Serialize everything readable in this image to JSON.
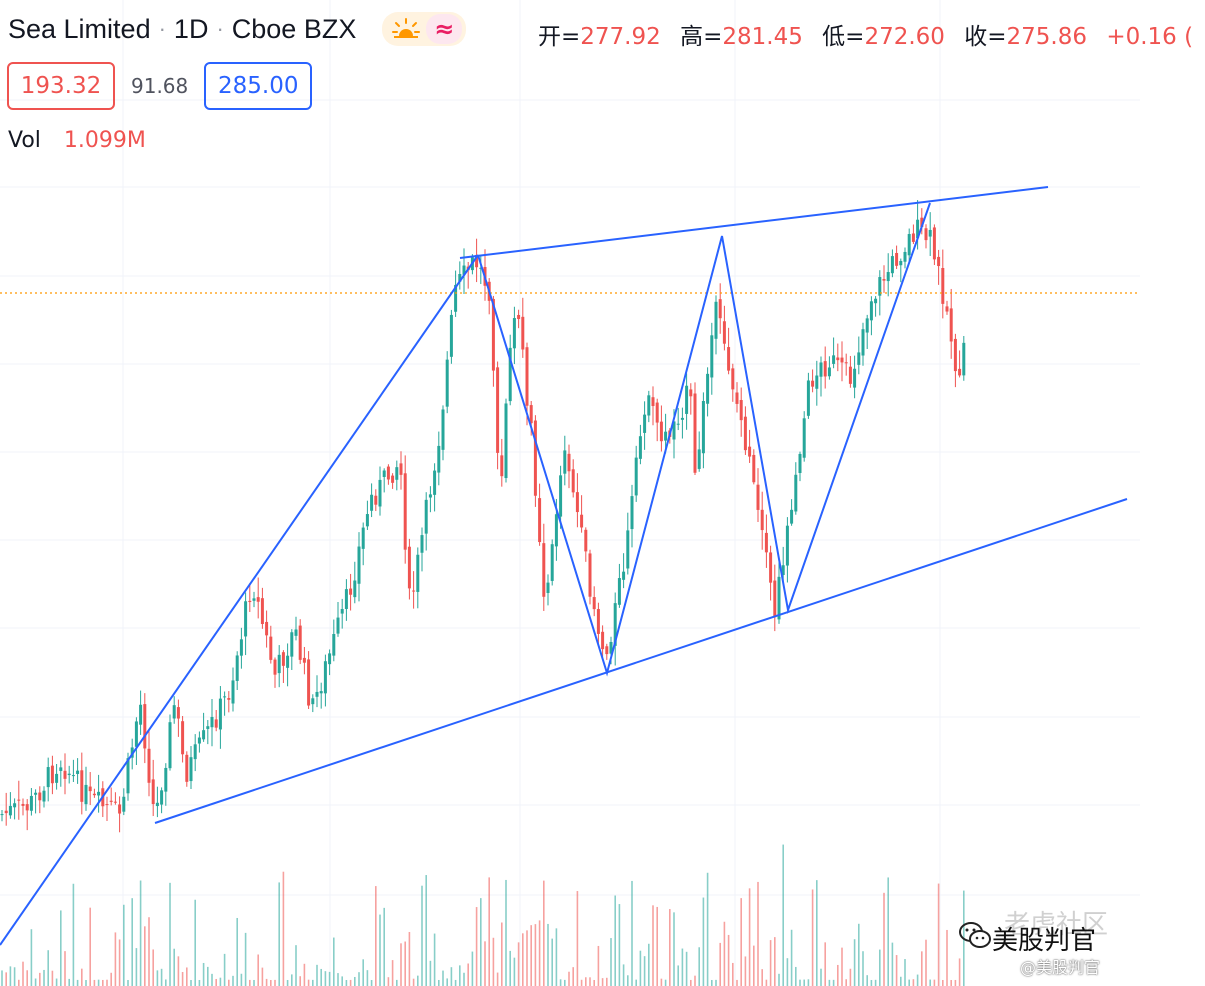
{
  "header": {
    "symbol": "Sea Limited",
    "interval": "1D",
    "exchange": "Cboe BZX",
    "ohlc": [
      {
        "key": "开=",
        "value": "277.92"
      },
      {
        "key": "高=",
        "value": "281.45"
      },
      {
        "key": "低=",
        "value": "272.60"
      },
      {
        "key": "收=",
        "value": "275.86"
      },
      {
        "key": "",
        "value": "+0.16 ("
      }
    ]
  },
  "indicator": {
    "left_value": "193.32",
    "middle_value": "91.68",
    "right_value": "285.00"
  },
  "volume": {
    "label": "Vol",
    "value": "1.099M"
  },
  "watermark": {
    "main": "美股判官",
    "sub": "@美股判官",
    "faint": "老虎社区"
  },
  "colors": {
    "up": "#26a69a",
    "down": "#ef5350",
    "trendline": "#2962ff",
    "price_line": "#ff9800",
    "grid": "#f0f3fa"
  },
  "icons": [
    "sun-icon",
    "wave-icon",
    "wechat-icon"
  ]
}
